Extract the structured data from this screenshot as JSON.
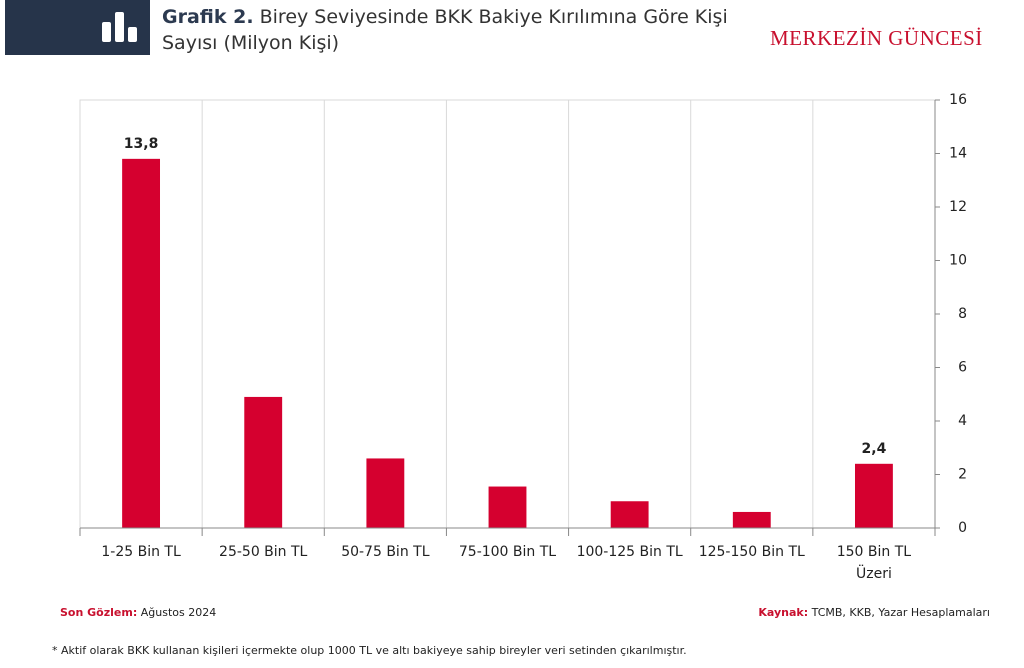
{
  "chart_data": {
    "type": "bar",
    "title_label": "Grafik 2.",
    "title": "Birey Seviyesinde BKK Bakiye Kırılımına Göre Kişi Sayısı (Milyon Kişi)",
    "brand": "MERKEZİN GÜNCESİ",
    "categories": [
      "1-25 Bin TL",
      "25-50 Bin TL",
      "50-75 Bin TL",
      "75-100 Bin TL",
      "100-125 Bin TL",
      "125-150 Bin TL",
      "150 Bin TL\nÜzeri"
    ],
    "values": [
      13.8,
      4.9,
      2.6,
      1.55,
      1.0,
      0.6,
      2.4
    ],
    "value_labels": [
      "13,8",
      null,
      null,
      null,
      null,
      null,
      "2,4"
    ],
    "color": "#d5002f",
    "ylim": [
      0,
      16
    ],
    "yticks": [
      0,
      2,
      4,
      6,
      8,
      10,
      12,
      14,
      16
    ],
    "observation_label": "Son Gözlem:",
    "observation": "Ağustos 2024",
    "source_label": "Kaynak:",
    "source": "TCMB, KKB, Yazar Hesaplamaları",
    "footnote": "* Aktif olarak BKK kullanan kişileri içermekte olup 1000 TL ve altı bakiyeye sahip bireyler veri setinden çıkarılmıştır."
  }
}
